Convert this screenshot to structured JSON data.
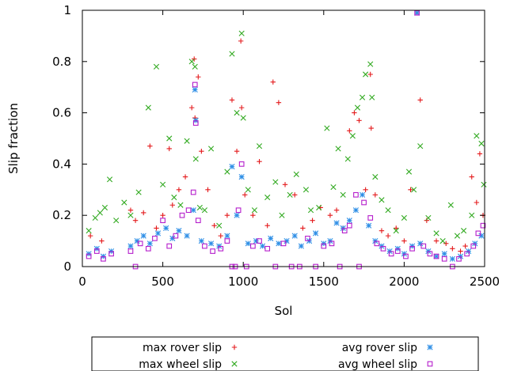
{
  "chart_data": {
    "type": "scatter",
    "title": "",
    "xlabel": "Sol",
    "ylabel": "Slip fraction",
    "xlim": [
      0,
      2500
    ],
    "ylim": [
      0,
      1
    ],
    "xticks": [
      0,
      500,
      1000,
      1500,
      2000,
      2500
    ],
    "yticks": [
      0,
      0.2,
      0.4,
      0.6,
      0.8,
      1
    ],
    "ytick_labels": [
      "0",
      "0.2",
      "0.4",
      "0.6",
      "0.8",
      "1"
    ],
    "xtick_labels": [
      "0",
      "500",
      "1000",
      "1500",
      "2000",
      "2500"
    ],
    "grid": false,
    "legend_position": "below plot, boxed, two columns",
    "series": [
      {
        "name": "max rover slip",
        "marker": "+",
        "color": "#e41a1c",
        "points": [
          [
            50,
            0.12
          ],
          [
            120,
            0.1
          ],
          [
            300,
            0.22
          ],
          [
            330,
            0.18
          ],
          [
            380,
            0.21
          ],
          [
            420,
            0.47
          ],
          [
            460,
            0.15
          ],
          [
            500,
            0.2
          ],
          [
            540,
            0.46
          ],
          [
            560,
            0.24
          ],
          [
            600,
            0.3
          ],
          [
            640,
            0.35
          ],
          [
            680,
            0.62
          ],
          [
            695,
            0.81
          ],
          [
            700,
            0.58
          ],
          [
            720,
            0.74
          ],
          [
            740,
            0.45
          ],
          [
            780,
            0.3
          ],
          [
            820,
            0.16
          ],
          [
            860,
            0.12
          ],
          [
            900,
            0.2
          ],
          [
            930,
            0.65
          ],
          [
            960,
            0.45
          ],
          [
            985,
            0.88
          ],
          [
            990,
            0.62
          ],
          [
            1010,
            0.28
          ],
          [
            1060,
            0.2
          ],
          [
            1100,
            0.41
          ],
          [
            1150,
            0.16
          ],
          [
            1185,
            0.72
          ],
          [
            1220,
            0.64
          ],
          [
            1260,
            0.32
          ],
          [
            1320,
            0.28
          ],
          [
            1370,
            0.15
          ],
          [
            1430,
            0.18
          ],
          [
            1480,
            0.23
          ],
          [
            1540,
            0.2
          ],
          [
            1580,
            0.22
          ],
          [
            1620,
            0.15
          ],
          [
            1660,
            0.53
          ],
          [
            1690,
            0.6
          ],
          [
            1720,
            0.57
          ],
          [
            1760,
            0.3
          ],
          [
            1790,
            0.75
          ],
          [
            1795,
            0.54
          ],
          [
            1820,
            0.28
          ],
          [
            1860,
            0.14
          ],
          [
            1900,
            0.12
          ],
          [
            1950,
            0.15
          ],
          [
            2000,
            0.1
          ],
          [
            2040,
            0.3
          ],
          [
            2080,
            0.99
          ],
          [
            2100,
            0.65
          ],
          [
            2140,
            0.18
          ],
          [
            2200,
            0.1
          ],
          [
            2260,
            0.09
          ],
          [
            2300,
            0.07
          ],
          [
            2350,
            0.06
          ],
          [
            2380,
            0.08
          ],
          [
            2420,
            0.35
          ],
          [
            2450,
            0.25
          ],
          [
            2470,
            0.44
          ],
          [
            2490,
            0.2
          ]
        ]
      },
      {
        "name": "max wheel slip",
        "marker": "x",
        "color": "#33aa22",
        "points": [
          [
            40,
            0.14
          ],
          [
            80,
            0.19
          ],
          [
            110,
            0.21
          ],
          [
            140,
            0.23
          ],
          [
            170,
            0.34
          ],
          [
            210,
            0.18
          ],
          [
            260,
            0.25
          ],
          [
            300,
            0.2
          ],
          [
            350,
            0.29
          ],
          [
            410,
            0.62
          ],
          [
            460,
            0.78
          ],
          [
            500,
            0.32
          ],
          [
            540,
            0.5
          ],
          [
            570,
            0.27
          ],
          [
            610,
            0.24
          ],
          [
            650,
            0.49
          ],
          [
            680,
            0.8
          ],
          [
            700,
            0.78
          ],
          [
            705,
            0.42
          ],
          [
            730,
            0.23
          ],
          [
            760,
            0.22
          ],
          [
            800,
            0.46
          ],
          [
            850,
            0.16
          ],
          [
            900,
            0.37
          ],
          [
            930,
            0.83
          ],
          [
            960,
            0.6
          ],
          [
            990,
            0.91
          ],
          [
            1000,
            0.58
          ],
          [
            1030,
            0.3
          ],
          [
            1070,
            0.22
          ],
          [
            1100,
            0.47
          ],
          [
            1150,
            0.27
          ],
          [
            1200,
            0.33
          ],
          [
            1240,
            0.2
          ],
          [
            1290,
            0.28
          ],
          [
            1330,
            0.36
          ],
          [
            1390,
            0.3
          ],
          [
            1420,
            0.22
          ],
          [
            1470,
            0.23
          ],
          [
            1520,
            0.54
          ],
          [
            1560,
            0.31
          ],
          [
            1590,
            0.46
          ],
          [
            1620,
            0.28
          ],
          [
            1650,
            0.42
          ],
          [
            1680,
            0.51
          ],
          [
            1710,
            0.62
          ],
          [
            1740,
            0.66
          ],
          [
            1760,
            0.75
          ],
          [
            1790,
            0.79
          ],
          [
            1800,
            0.66
          ],
          [
            1820,
            0.35
          ],
          [
            1860,
            0.26
          ],
          [
            1900,
            0.22
          ],
          [
            1950,
            0.14
          ],
          [
            2000,
            0.19
          ],
          [
            2030,
            0.37
          ],
          [
            2060,
            0.3
          ],
          [
            2100,
            0.47
          ],
          [
            2150,
            0.19
          ],
          [
            2200,
            0.13
          ],
          [
            2240,
            0.1
          ],
          [
            2290,
            0.24
          ],
          [
            2330,
            0.12
          ],
          [
            2370,
            0.14
          ],
          [
            2420,
            0.2
          ],
          [
            2450,
            0.51
          ],
          [
            2480,
            0.48
          ],
          [
            2495,
            0.32
          ]
        ]
      },
      {
        "name": "avg rover slip",
        "marker": "*",
        "color": "#2f8fe6",
        "points": [
          [
            40,
            0.05
          ],
          [
            90,
            0.07
          ],
          [
            130,
            0.04
          ],
          [
            180,
            0.06
          ],
          [
            300,
            0.08
          ],
          [
            340,
            0.1
          ],
          [
            380,
            0.12
          ],
          [
            420,
            0.09
          ],
          [
            470,
            0.13
          ],
          [
            520,
            0.15
          ],
          [
            560,
            0.11
          ],
          [
            600,
            0.14
          ],
          [
            650,
            0.12
          ],
          [
            690,
            0.22
          ],
          [
            700,
            0.69
          ],
          [
            705,
            0.57
          ],
          [
            740,
            0.1
          ],
          [
            800,
            0.09
          ],
          [
            850,
            0.08
          ],
          [
            900,
            0.12
          ],
          [
            930,
            0.39
          ],
          [
            960,
            0.2
          ],
          [
            990,
            0.35
          ],
          [
            1030,
            0.09
          ],
          [
            1080,
            0.1
          ],
          [
            1120,
            0.08
          ],
          [
            1170,
            0.11
          ],
          [
            1220,
            0.09
          ],
          [
            1270,
            0.1
          ],
          [
            1320,
            0.12
          ],
          [
            1360,
            0.08
          ],
          [
            1410,
            0.1
          ],
          [
            1450,
            0.13
          ],
          [
            1500,
            0.09
          ],
          [
            1540,
            0.1
          ],
          [
            1580,
            0.17
          ],
          [
            1620,
            0.15
          ],
          [
            1660,
            0.18
          ],
          [
            1700,
            0.22
          ],
          [
            1740,
            0.28
          ],
          [
            1780,
            0.16
          ],
          [
            1820,
            0.1
          ],
          [
            1860,
            0.08
          ],
          [
            1910,
            0.06
          ],
          [
            1960,
            0.07
          ],
          [
            2000,
            0.05
          ],
          [
            2050,
            0.08
          ],
          [
            2080,
            0.99
          ],
          [
            2100,
            0.09
          ],
          [
            2150,
            0.06
          ],
          [
            2200,
            0.04
          ],
          [
            2250,
            0.05
          ],
          [
            2300,
            0.03
          ],
          [
            2350,
            0.04
          ],
          [
            2400,
            0.06
          ],
          [
            2440,
            0.09
          ],
          [
            2480,
            0.12
          ]
        ]
      },
      {
        "name": "avg wheel slip",
        "marker": "square",
        "color": "#b51ecc",
        "points": [
          [
            40,
            0.04
          ],
          [
            90,
            0.06
          ],
          [
            130,
            0.03
          ],
          [
            180,
            0.05
          ],
          [
            300,
            0.06
          ],
          [
            330,
            0.0
          ],
          [
            360,
            0.09
          ],
          [
            410,
            0.07
          ],
          [
            450,
            0.11
          ],
          [
            500,
            0.18
          ],
          [
            540,
            0.08
          ],
          [
            580,
            0.12
          ],
          [
            620,
            0.2
          ],
          [
            660,
            0.22
          ],
          [
            690,
            0.29
          ],
          [
            700,
            0.71
          ],
          [
            705,
            0.56
          ],
          [
            720,
            0.18
          ],
          [
            760,
            0.08
          ],
          [
            810,
            0.06
          ],
          [
            860,
            0.07
          ],
          [
            900,
            0.1
          ],
          [
            930,
            0.0
          ],
          [
            950,
            0.0
          ],
          [
            970,
            0.22
          ],
          [
            990,
            0.4
          ],
          [
            1020,
            0.0
          ],
          [
            1060,
            0.08
          ],
          [
            1100,
            0.1
          ],
          [
            1150,
            0.07
          ],
          [
            1200,
            0.0
          ],
          [
            1250,
            0.09
          ],
          [
            1300,
            0.0
          ],
          [
            1350,
            0.0
          ],
          [
            1400,
            0.11
          ],
          [
            1450,
            0.0
          ],
          [
            1500,
            0.08
          ],
          [
            1550,
            0.09
          ],
          [
            1600,
            0.0
          ],
          [
            1630,
            0.14
          ],
          [
            1660,
            0.16
          ],
          [
            1700,
            0.28
          ],
          [
            1720,
            0.0
          ],
          [
            1750,
            0.25
          ],
          [
            1790,
            0.19
          ],
          [
            1830,
            0.09
          ],
          [
            1870,
            0.07
          ],
          [
            1920,
            0.05
          ],
          [
            1960,
            0.06
          ],
          [
            2010,
            0.04
          ],
          [
            2050,
            0.07
          ],
          [
            2080,
            0.99
          ],
          [
            2120,
            0.08
          ],
          [
            2160,
            0.05
          ],
          [
            2200,
            0.04
          ],
          [
            2250,
            0.03
          ],
          [
            2300,
            0.0
          ],
          [
            2340,
            0.03
          ],
          [
            2390,
            0.05
          ],
          [
            2430,
            0.08
          ],
          [
            2460,
            0.13
          ],
          [
            2490,
            0.16
          ]
        ]
      }
    ]
  }
}
